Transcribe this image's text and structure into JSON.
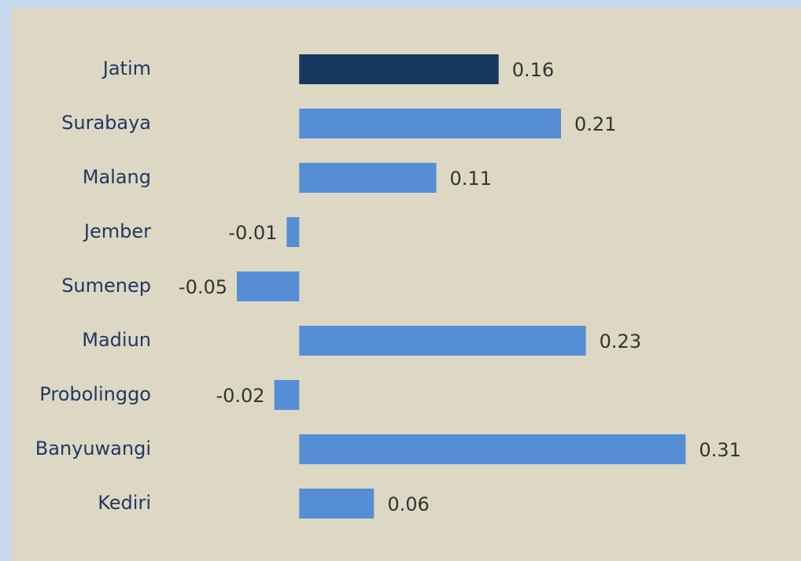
{
  "chart_data": {
    "type": "barh",
    "categories": [
      "Jatim",
      "Surabaya",
      "Malang",
      "Jember",
      "Sumenep",
      "Madiun",
      "Probolinggo",
      "Banyuwangi",
      "Kediri"
    ],
    "values": [
      0.16,
      0.21,
      0.11,
      -0.01,
      -0.05,
      0.23,
      -0.02,
      0.31,
      0.06
    ],
    "colors": [
      "#17375e",
      "#558ed5",
      "#558ed5",
      "#558ed5",
      "#558ed5",
      "#558ed5",
      "#558ed5",
      "#558ed5",
      "#558ed5"
    ],
    "xlim": [
      -0.24,
      0.4
    ]
  }
}
